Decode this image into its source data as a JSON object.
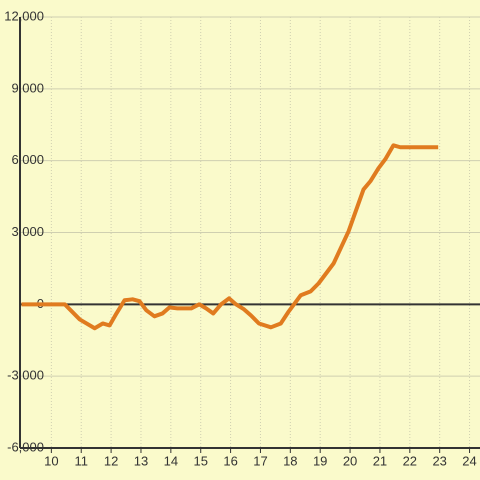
{
  "chart_data": {
    "type": "line",
    "x": [
      9,
      10.45,
      10.95,
      11.45,
      11.72,
      11.95,
      12.18,
      12.45,
      12.72,
      12.95,
      13.18,
      13.45,
      13.72,
      13.95,
      14.22,
      14.68,
      14.95,
      15.18,
      15.42,
      15.68,
      15.95,
      16.18,
      16.45,
      16.68,
      16.95,
      17.35,
      17.68,
      17.95,
      18.35,
      18.68,
      18.95,
      19.45,
      19.95,
      20.45,
      20.68,
      20.95,
      21.18,
      21.45,
      21.68,
      21.95,
      22.95
    ],
    "series": [
      {
        "color": "#e07b1f",
        "values": [
          0,
          0,
          -630,
          -1000,
          -800,
          -880,
          -380,
          170,
          210,
          130,
          -250,
          -500,
          -380,
          -130,
          -170,
          -170,
          0,
          -170,
          -380,
          0,
          250,
          0,
          -210,
          -460,
          -800,
          -960,
          -800,
          -290,
          380,
          540,
          880,
          1710,
          3050,
          4800,
          5140,
          5680,
          6060,
          6640,
          6560,
          6560,
          6560
        ]
      }
    ],
    "xlim": [
      8.95,
      24.35
    ],
    "xticks": [
      10,
      11,
      12,
      13,
      14,
      15,
      16,
      17,
      18,
      19,
      20,
      21,
      22,
      23,
      24
    ],
    "ylim": [
      -6000,
      12000
    ],
    "yticks": [
      {
        "value": -6000,
        "label": "-6,000"
      },
      {
        "value": -3000,
        "label": "-3,000"
      },
      0,
      {
        "value": 3000,
        "label": "3,000"
      },
      {
        "value": 6000,
        "label": "6,000"
      },
      {
        "value": 9000,
        "label": "9,000"
      },
      {
        "value": 12000,
        "label": "12,000"
      }
    ],
    "grid": true
  }
}
